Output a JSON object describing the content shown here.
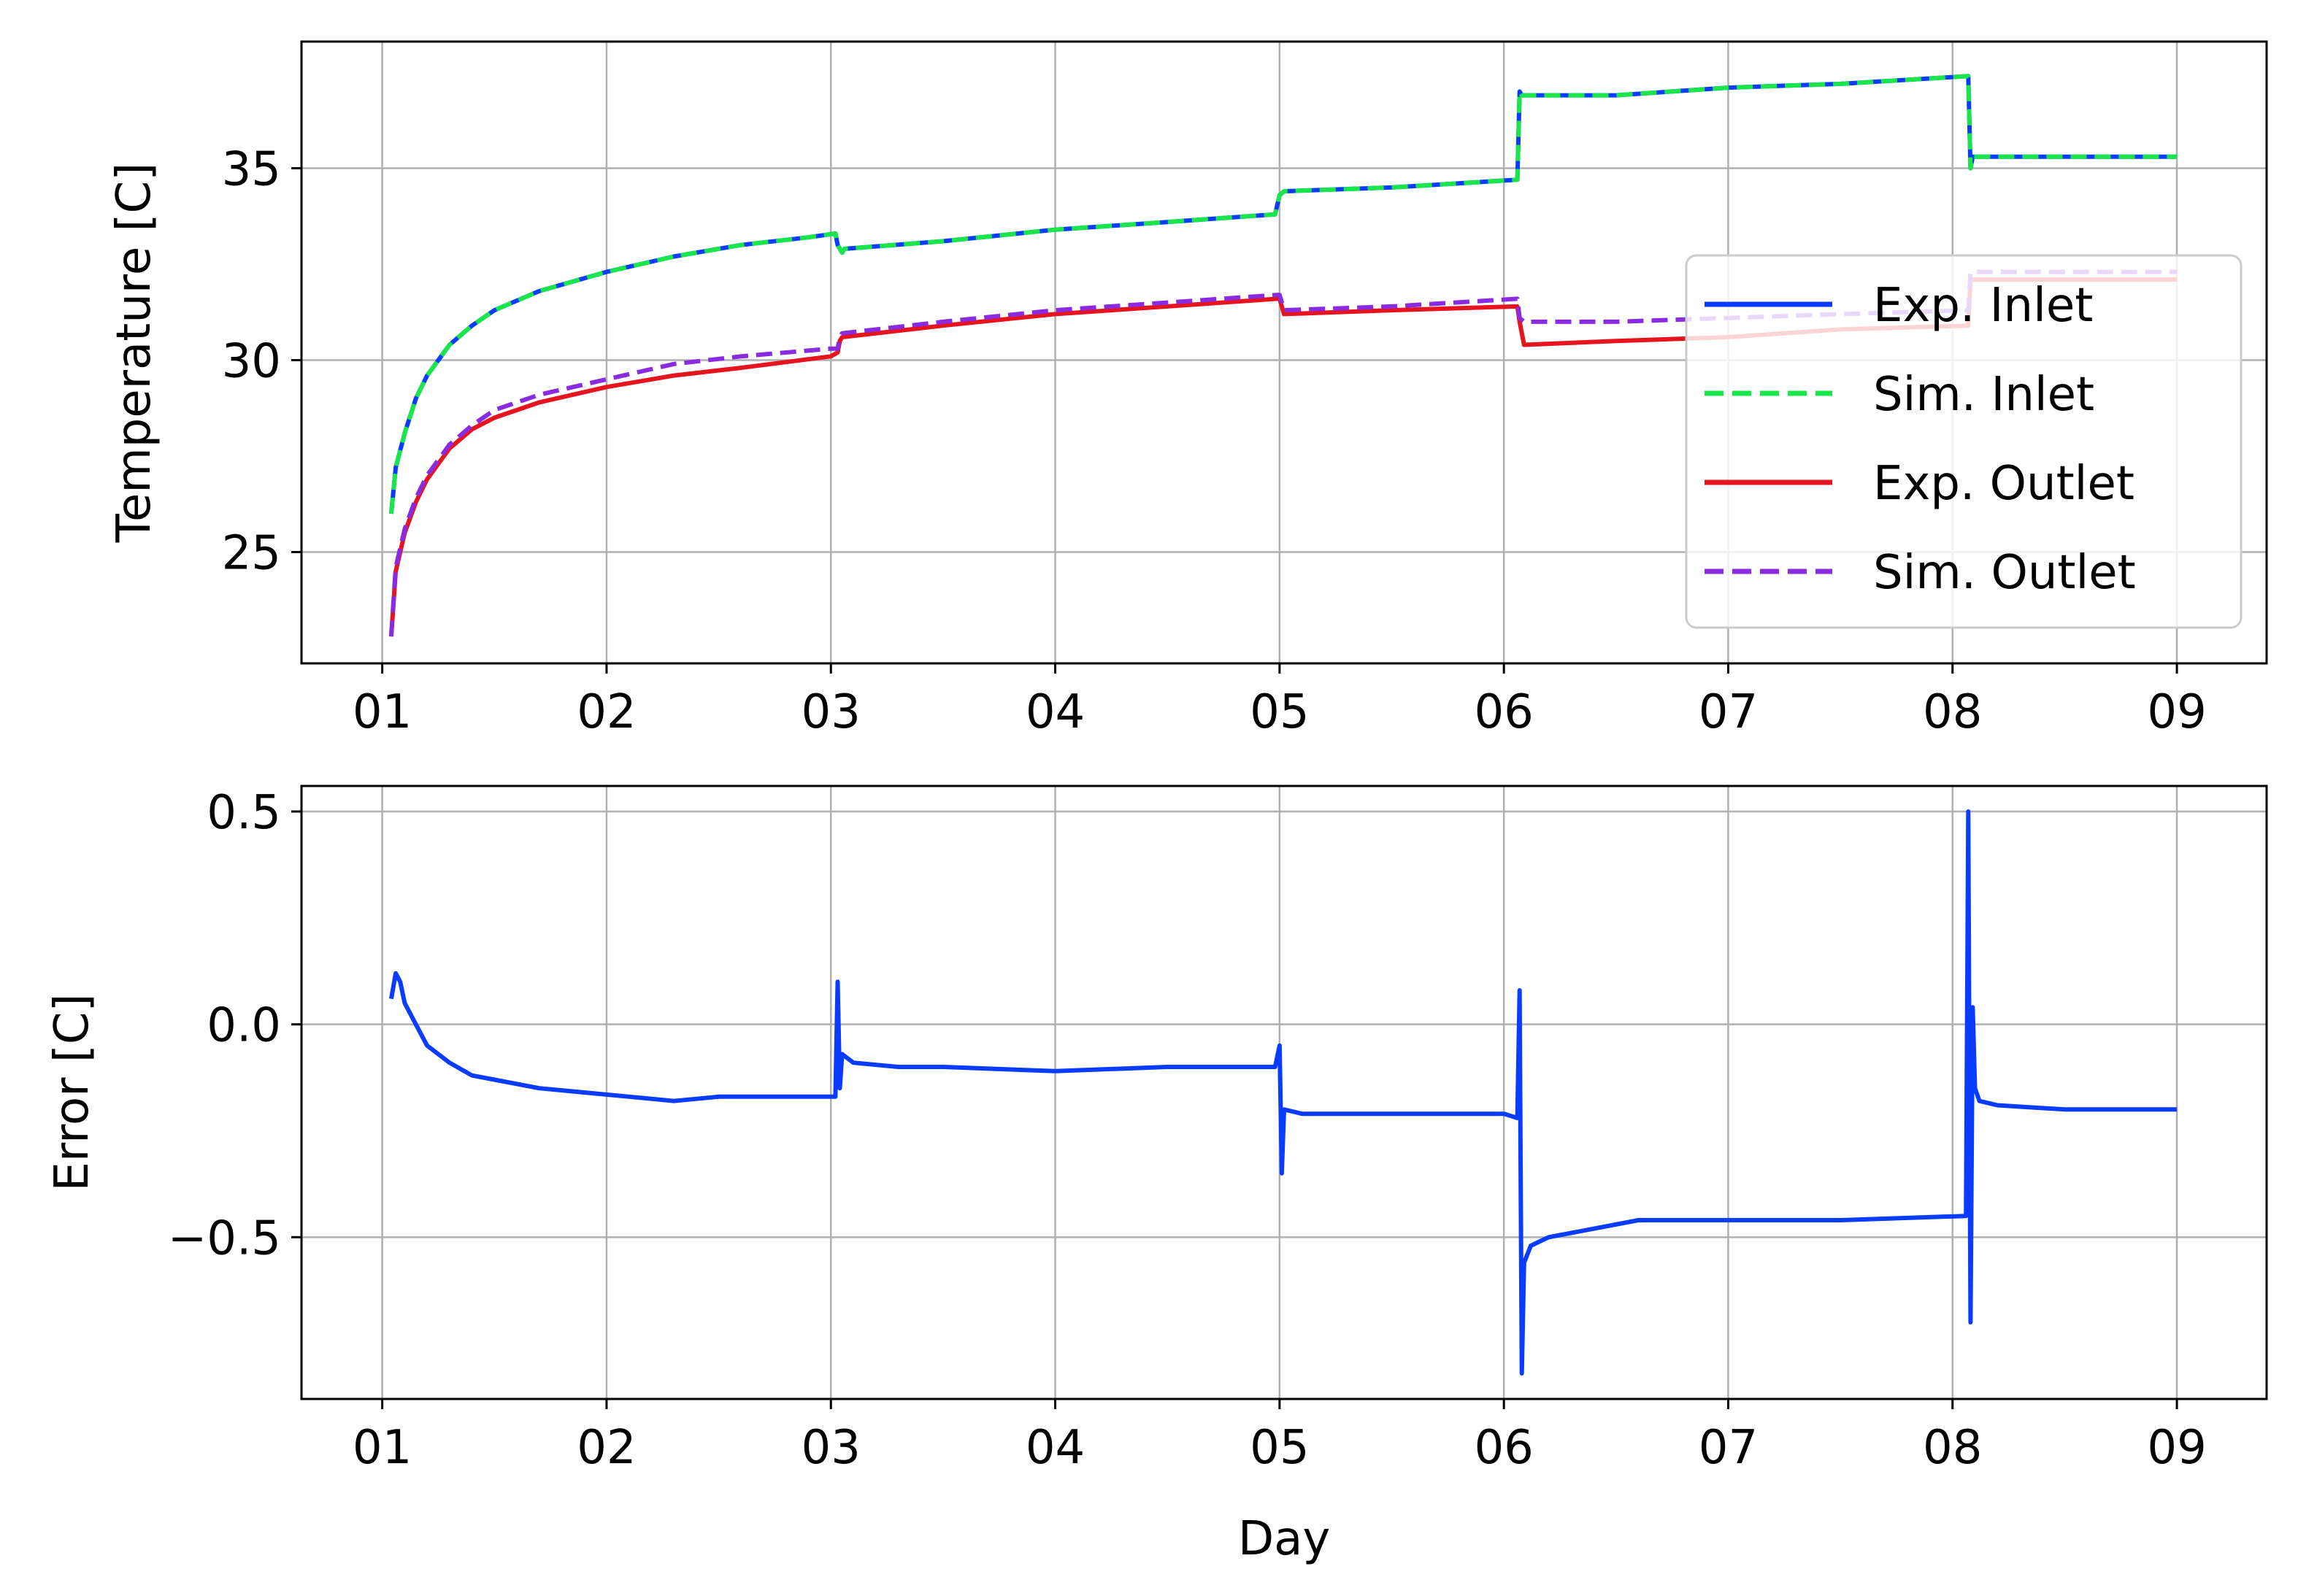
{
  "chart_data": [
    {
      "type": "line",
      "title": "",
      "xlabel": "",
      "ylabel": "Temperature [C]",
      "xlim": [
        0.64,
        9.4
      ],
      "ylim": [
        22.1,
        38.3
      ],
      "x_ticks": [
        1,
        2,
        3,
        4,
        5,
        6,
        7,
        8,
        9
      ],
      "x_tick_labels": [
        "01",
        "02",
        "03",
        "04",
        "05",
        "06",
        "07",
        "08",
        "09"
      ],
      "y_ticks": [
        25,
        30,
        35
      ],
      "y_tick_labels": [
        "25",
        "30",
        "35"
      ],
      "grid": true,
      "legend_position": "center-right",
      "series": [
        {
          "name": "Exp. Inlet",
          "color": "#0a3cff",
          "style": "solid",
          "x": [
            1.04,
            1.06,
            1.1,
            1.15,
            1.2,
            1.3,
            1.4,
            1.5,
            1.7,
            2.0,
            2.3,
            2.6,
            2.9,
            3.02,
            3.03,
            3.05,
            3.06,
            3.5,
            4.0,
            4.5,
            4.98,
            5.0,
            5.02,
            5.5,
            6.06,
            6.07,
            6.08,
            6.5,
            7.0,
            7.5,
            8.07,
            8.08,
            8.09,
            8.5,
            9.0
          ],
          "y": [
            26.0,
            27.2,
            28.1,
            29.0,
            29.6,
            30.4,
            30.9,
            31.3,
            31.8,
            32.3,
            32.7,
            33.0,
            33.2,
            33.3,
            33.0,
            32.8,
            32.9,
            33.1,
            33.4,
            33.6,
            33.8,
            34.3,
            34.4,
            34.5,
            34.7,
            37.0,
            36.9,
            36.9,
            37.1,
            37.2,
            37.4,
            35.0,
            35.3,
            35.3,
            35.3
          ]
        },
        {
          "name": "Sim. Inlet",
          "color": "#19e64a",
          "style": "dashed",
          "x": [
            1.04,
            1.06,
            1.1,
            1.15,
            1.2,
            1.3,
            1.4,
            1.5,
            1.7,
            2.0,
            2.3,
            2.6,
            2.9,
            3.02,
            3.03,
            3.05,
            3.06,
            3.5,
            4.0,
            4.5,
            4.98,
            5.0,
            5.02,
            5.5,
            6.06,
            6.07,
            6.08,
            6.5,
            7.0,
            7.5,
            8.07,
            8.08,
            8.09,
            8.5,
            9.0
          ],
          "y": [
            26.0,
            27.2,
            28.1,
            29.0,
            29.6,
            30.4,
            30.9,
            31.3,
            31.8,
            32.3,
            32.7,
            33.0,
            33.2,
            33.3,
            33.0,
            32.8,
            32.9,
            33.1,
            33.4,
            33.6,
            33.8,
            34.3,
            34.4,
            34.5,
            34.7,
            37.0,
            36.9,
            36.9,
            37.1,
            37.2,
            37.4,
            35.0,
            35.3,
            35.3,
            35.3
          ]
        },
        {
          "name": "Exp. Outlet",
          "color": "#e6141e",
          "style": "solid",
          "x": [
            1.04,
            1.06,
            1.1,
            1.15,
            1.2,
            1.3,
            1.4,
            1.5,
            1.7,
            2.0,
            2.3,
            2.6,
            3.0,
            3.03,
            3.04,
            3.05,
            3.5,
            4.0,
            4.5,
            4.99,
            5.0,
            5.02,
            5.5,
            6.06,
            6.07,
            6.09,
            6.5,
            7.0,
            7.5,
            8.07,
            8.08,
            8.09,
            8.5,
            9.0
          ],
          "y": [
            22.8,
            24.5,
            25.5,
            26.3,
            26.9,
            27.7,
            28.2,
            28.5,
            28.9,
            29.3,
            29.6,
            29.8,
            30.1,
            30.2,
            30.5,
            30.6,
            30.9,
            31.2,
            31.4,
            31.6,
            31.6,
            31.2,
            31.3,
            31.4,
            31.0,
            30.4,
            30.5,
            30.6,
            30.8,
            30.9,
            32.1,
            32.1,
            32.1,
            32.1
          ]
        },
        {
          "name": "Sim. Outlet",
          "color": "#8a2be2",
          "style": "dashed",
          "x": [
            1.04,
            1.06,
            1.1,
            1.15,
            1.2,
            1.3,
            1.4,
            1.5,
            1.7,
            2.0,
            2.3,
            2.6,
            3.0,
            3.03,
            3.04,
            3.05,
            3.5,
            4.0,
            4.5,
            4.99,
            5.0,
            5.02,
            5.5,
            6.06,
            6.07,
            6.09,
            6.5,
            7.0,
            7.5,
            8.07,
            8.08,
            8.09,
            8.5,
            9.0
          ],
          "y": [
            22.8,
            24.6,
            25.6,
            26.4,
            27.0,
            27.8,
            28.3,
            28.7,
            29.1,
            29.5,
            29.9,
            30.1,
            30.3,
            30.3,
            30.6,
            30.7,
            31.0,
            31.3,
            31.5,
            31.7,
            31.7,
            31.3,
            31.4,
            31.6,
            31.1,
            31.0,
            31.0,
            31.1,
            31.2,
            31.3,
            32.3,
            32.3,
            32.3,
            32.3
          ]
        }
      ]
    },
    {
      "type": "line",
      "title": "",
      "xlabel": "Day",
      "ylabel": "Error [C]",
      "xlim": [
        0.64,
        9.4
      ],
      "ylim": [
        -0.88,
        0.56
      ],
      "x_ticks": [
        1,
        2,
        3,
        4,
        5,
        6,
        7,
        8,
        9
      ],
      "x_tick_labels": [
        "01",
        "02",
        "03",
        "04",
        "05",
        "06",
        "07",
        "08",
        "09"
      ],
      "y_ticks": [
        -0.5,
        0.0,
        0.5
      ],
      "y_tick_labels": [
        "−0.5",
        "0.0",
        "0.5"
      ],
      "grid": true,
      "series": [
        {
          "color": "#0a3cff",
          "style": "solid",
          "x": [
            1.04,
            1.06,
            1.08,
            1.1,
            1.15,
            1.2,
            1.3,
            1.4,
            1.5,
            1.7,
            1.9,
            2.1,
            2.3,
            2.5,
            2.7,
            2.9,
            3.02,
            3.03,
            3.04,
            3.05,
            3.1,
            3.3,
            3.5,
            4.0,
            4.5,
            4.98,
            5.0,
            5.01,
            5.02,
            5.1,
            5.5,
            6.0,
            6.06,
            6.07,
            6.08,
            6.09,
            6.12,
            6.2,
            6.4,
            6.6,
            7.0,
            7.5,
            8.06,
            8.07,
            8.08,
            8.09,
            8.1,
            8.12,
            8.2,
            8.5,
            9.0
          ],
          "y": [
            0.06,
            0.12,
            0.1,
            0.05,
            0.0,
            -0.05,
            -0.09,
            -0.12,
            -0.13,
            -0.15,
            -0.16,
            -0.17,
            -0.18,
            -0.17,
            -0.17,
            -0.17,
            -0.17,
            0.1,
            -0.15,
            -0.07,
            -0.09,
            -0.1,
            -0.1,
            -0.11,
            -0.1,
            -0.1,
            -0.05,
            -0.35,
            -0.2,
            -0.21,
            -0.21,
            -0.21,
            -0.22,
            0.08,
            -0.82,
            -0.56,
            -0.52,
            -0.5,
            -0.48,
            -0.46,
            -0.46,
            -0.46,
            -0.45,
            0.5,
            -0.7,
            0.04,
            -0.15,
            -0.18,
            -0.19,
            -0.2,
            -0.2
          ]
        }
      ]
    }
  ]
}
